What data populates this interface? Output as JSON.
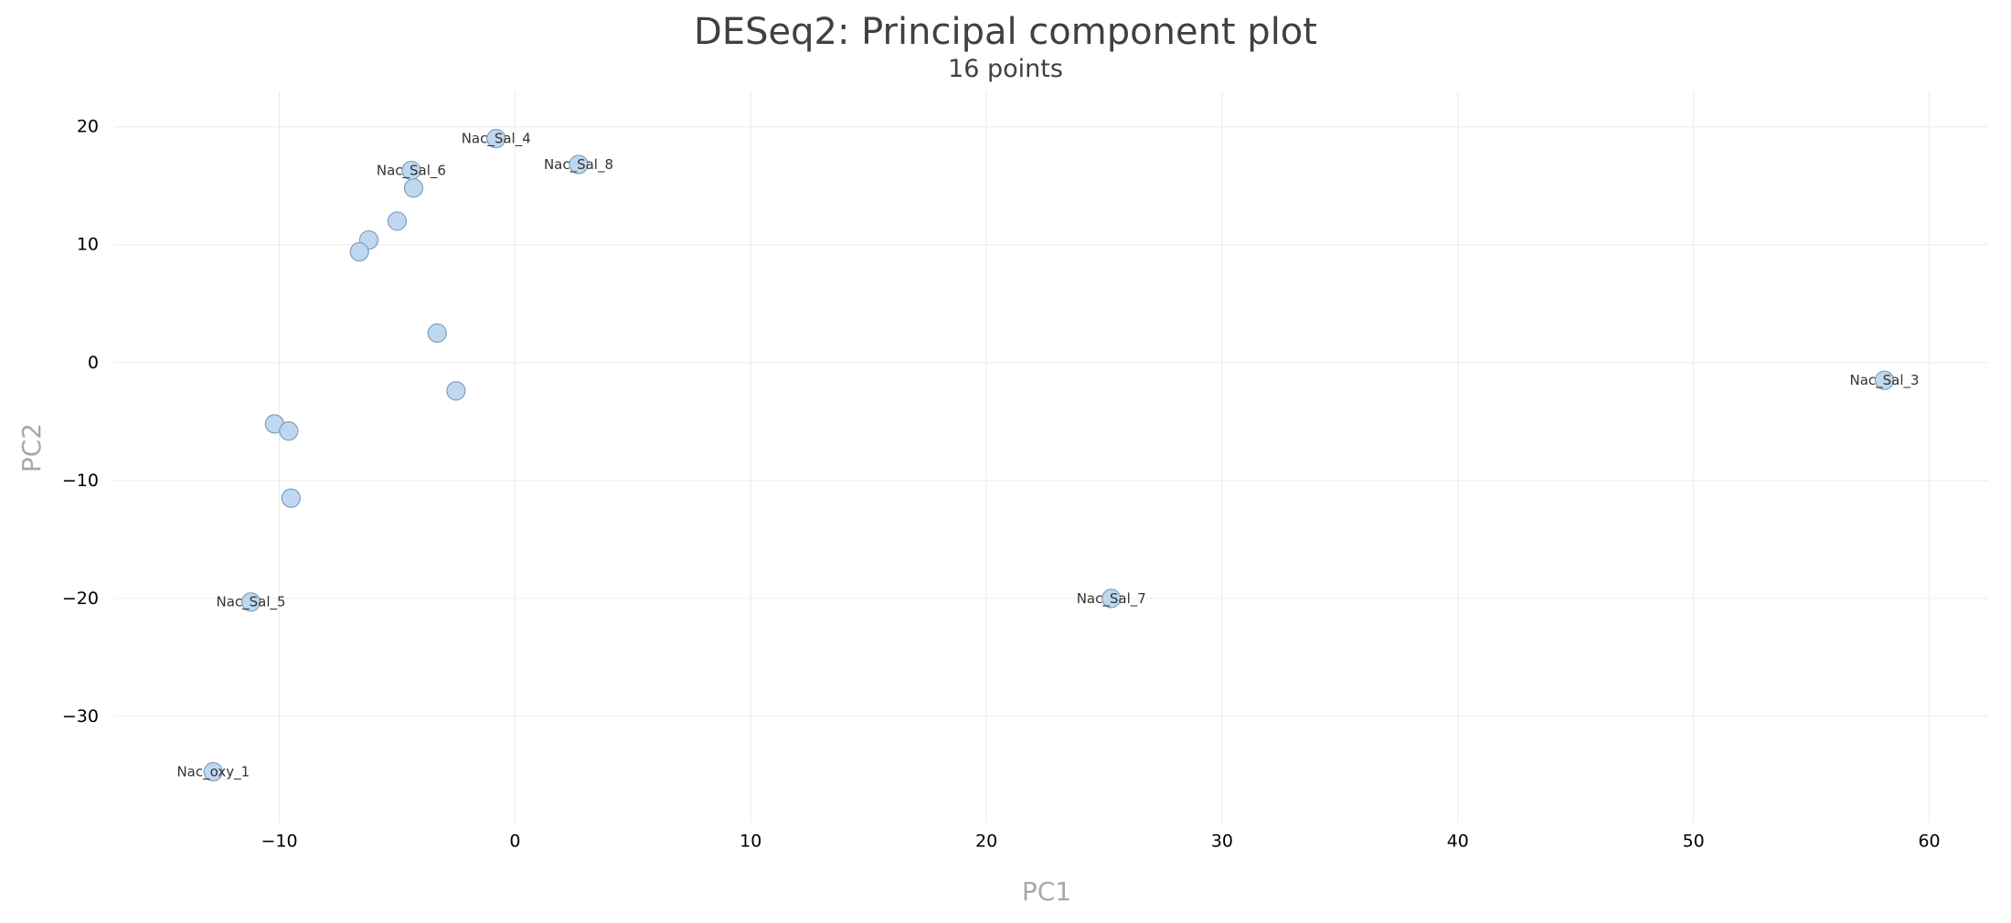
{
  "chart_data": {
    "type": "scatter",
    "title": "DESeq2: Principal component plot",
    "subtitle": "16 points",
    "xlabel": "PC1",
    "ylabel": "PC2",
    "xlim": [
      -17,
      62.5
    ],
    "ylim": [
      -39,
      23
    ],
    "x_ticks": [
      -10,
      0,
      10,
      20,
      30,
      40,
      50,
      60
    ],
    "x_tick_labels": [
      "−10",
      "0",
      "10",
      "20",
      "30",
      "40",
      "50",
      "60"
    ],
    "y_ticks": [
      20,
      10,
      0,
      -10,
      -20,
      -30
    ],
    "y_tick_labels": [
      "20",
      "10",
      "0",
      "−10",
      "−20",
      "−30"
    ],
    "grid": true,
    "color": "#bcd6ee",
    "points": [
      {
        "x": -0.8,
        "y": 19.0,
        "label": "Nac_Sal_4"
      },
      {
        "x": 2.7,
        "y": 16.8,
        "label": "Nac_Sal_8"
      },
      {
        "x": -4.4,
        "y": 16.3,
        "label": "Nac_Sal_6"
      },
      {
        "x": -4.3,
        "y": 14.8,
        "label": ""
      },
      {
        "x": -5.0,
        "y": 12.0,
        "label": ""
      },
      {
        "x": -6.2,
        "y": 10.4,
        "label": ""
      },
      {
        "x": -6.6,
        "y": 9.4,
        "label": ""
      },
      {
        "x": -3.3,
        "y": 2.5,
        "label": ""
      },
      {
        "x": -2.5,
        "y": -2.4,
        "label": ""
      },
      {
        "x": -10.2,
        "y": -5.2,
        "label": ""
      },
      {
        "x": -9.6,
        "y": -5.8,
        "label": ""
      },
      {
        "x": -9.5,
        "y": -11.5,
        "label": ""
      },
      {
        "x": 58.1,
        "y": -1.5,
        "label": "Nac_Sal_3"
      },
      {
        "x": 25.3,
        "y": -20.0,
        "label": "Nac_Sal_7"
      },
      {
        "x": -11.2,
        "y": -20.3,
        "label": "Nac_Sal_5"
      },
      {
        "x": -12.8,
        "y": -34.7,
        "label": "Nac_oxy_1"
      }
    ]
  }
}
